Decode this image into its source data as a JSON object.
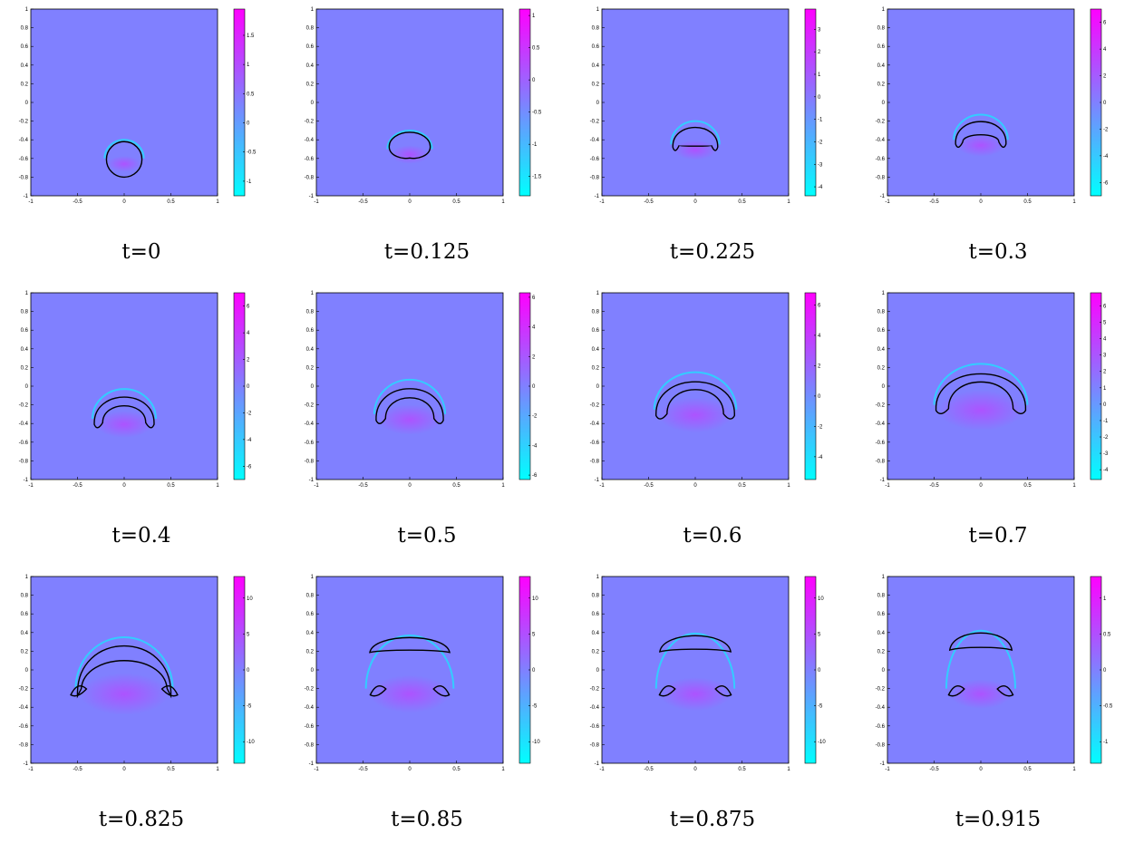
{
  "colors": {
    "background_field": "#8080ff",
    "colormap_low": "#00ffff",
    "colormap_mid": "#8080ff",
    "colormap_high": "#ff00ff",
    "interface": "#000000"
  },
  "chart_data": [
    {
      "type": "heatmap",
      "title": "t=0",
      "xlim": [
        -1,
        1
      ],
      "ylim": [
        -1,
        1
      ],
      "xticks": [
        "-1",
        "-0.5",
        "0",
        "0.5",
        "1"
      ],
      "yticks": [
        "1",
        "0.8",
        "0.6",
        "0.4",
        "0.2",
        "0",
        "-0.2",
        "-0.4",
        "-0.6",
        "-0.8",
        "-1"
      ],
      "colorbar_ticks": [
        "1.5",
        "1",
        "0.5",
        "0",
        "-0.5",
        "-1"
      ],
      "colorbar_range": [
        -1.25,
        1.95
      ],
      "interface": {
        "stage": "circle",
        "center_y": -0.6,
        "width": 0.19,
        "top": -0.42,
        "cap": -0.42,
        "tail": 0.0,
        "lobe": 0.0
      }
    },
    {
      "type": "heatmap",
      "title": "t=0.125",
      "xlim": [
        -1,
        1
      ],
      "ylim": [
        -1,
        1
      ],
      "xticks": [
        "-1",
        "-0.5",
        "0",
        "0.5",
        "1"
      ],
      "yticks": [
        "1",
        "0.8",
        "0.6",
        "0.4",
        "0.2",
        "0",
        "-0.2",
        "-0.4",
        "-0.6",
        "-0.8",
        "-1"
      ],
      "colorbar_ticks": [
        "1",
        "0.5",
        "0",
        "-0.5",
        "-1",
        "-1.5"
      ],
      "colorbar_range": [
        -1.8,
        1.1
      ],
      "interface": {
        "stage": "dimple",
        "center_y": -0.5,
        "width": 0.22,
        "top": -0.32,
        "cap": -0.32,
        "tail": 0.0,
        "lobe": 0.0
      }
    },
    {
      "type": "heatmap",
      "title": "t=0.225",
      "xlim": [
        -1,
        1
      ],
      "ylim": [
        -1,
        1
      ],
      "xticks": [
        "-1",
        "-0.5",
        "0",
        "0.5",
        "1"
      ],
      "yticks": [
        "1",
        "0.8",
        "0.6",
        "0.4",
        "0.2",
        "0",
        "-0.2",
        "-0.4",
        "-0.6",
        "-0.8",
        "-1"
      ],
      "colorbar_ticks": [
        "3",
        "2",
        "1",
        "0",
        "-1",
        "-2",
        "-3",
        "-4"
      ],
      "colorbar_range": [
        -4.4,
        3.9
      ],
      "interface": {
        "stage": "cap",
        "center_y": -0.45,
        "width": 0.24,
        "top": -0.22,
        "cap": -0.47,
        "tail": 0.1,
        "lobe": 0.0
      }
    },
    {
      "type": "heatmap",
      "title": "t=0.3",
      "xlim": [
        -1,
        1
      ],
      "ylim": [
        -1,
        1
      ],
      "xticks": [
        "-1",
        "-0.5",
        "0",
        "0.5",
        "1"
      ],
      "yticks": [
        "1",
        "0.8",
        "0.6",
        "0.4",
        "0.2",
        "0",
        "-0.2",
        "-0.4",
        "-0.6",
        "-0.8",
        "-1"
      ],
      "colorbar_ticks": [
        "6",
        "4",
        "2",
        "0",
        "-2",
        "-4",
        "-6"
      ],
      "colorbar_range": [
        -7,
        7
      ],
      "interface": {
        "stage": "cap",
        "center_y": -0.4,
        "width": 0.27,
        "top": -0.15,
        "cap": -0.32,
        "tail": 0.15,
        "lobe": 0.0
      }
    },
    {
      "type": "heatmap",
      "title": "t=0.4",
      "xlim": [
        -1,
        1
      ],
      "ylim": [
        -1,
        1
      ],
      "xticks": [
        "-1",
        "-0.5",
        "0",
        "0.5",
        "1"
      ],
      "yticks": [
        "1",
        "0.8",
        "0.6",
        "0.4",
        "0.2",
        "0",
        "-0.2",
        "-0.4",
        "-0.6",
        "-0.8",
        "-1"
      ],
      "colorbar_ticks": [
        "6",
        "4",
        "2",
        "0",
        "-2",
        "-4",
        "-6"
      ],
      "colorbar_range": [
        -7,
        7
      ],
      "interface": {
        "stage": "cap",
        "center_y": -0.35,
        "width": 0.32,
        "top": -0.05,
        "cap": -0.15,
        "tail": 0.2,
        "lobe": 0.0
      }
    },
    {
      "type": "heatmap",
      "title": "t=0.5",
      "xlim": [
        -1,
        1
      ],
      "ylim": [
        -1,
        1
      ],
      "xticks": [
        "-1",
        "-0.5",
        "0",
        "0.5",
        "1"
      ],
      "yticks": [
        "1",
        "0.8",
        "0.6",
        "0.4",
        "0.2",
        "0",
        "-0.2",
        "-0.4",
        "-0.6",
        "-0.8",
        "-1"
      ],
      "colorbar_ticks": [
        "6",
        "4",
        "2",
        "0",
        "-2",
        "-4",
        "-6"
      ],
      "colorbar_range": [
        -6.3,
        6.3
      ],
      "interface": {
        "stage": "cap",
        "center_y": -0.3,
        "width": 0.36,
        "top": 0.05,
        "cap": -0.05,
        "tail": 0.22,
        "lobe": 0.0
      }
    },
    {
      "type": "heatmap",
      "title": "t=0.6",
      "xlim": [
        -1,
        1
      ],
      "ylim": [
        -1,
        1
      ],
      "xticks": [
        "-1",
        "-0.5",
        "0",
        "0.5",
        "1"
      ],
      "yticks": [
        "1",
        "0.8",
        "0.6",
        "0.4",
        "0.2",
        "0",
        "-0.2",
        "-0.4",
        "-0.6",
        "-0.8",
        "-1"
      ],
      "colorbar_ticks": [
        "6",
        "4",
        "2",
        "0",
        "-2",
        "-4"
      ],
      "colorbar_range": [
        -5.5,
        6.8
      ],
      "interface": {
        "stage": "cap",
        "center_y": -0.25,
        "width": 0.42,
        "top": 0.13,
        "cap": 0.05,
        "tail": 0.22,
        "lobe": 0.0
      }
    },
    {
      "type": "heatmap",
      "title": "t=0.7",
      "xlim": [
        -1,
        1
      ],
      "ylim": [
        -1,
        1
      ],
      "xticks": [
        "-1",
        "-0.5",
        "0",
        "0.5",
        "1"
      ],
      "yticks": [
        "1",
        "0.8",
        "0.6",
        "0.4",
        "0.2",
        "0",
        "-0.2",
        "-0.4",
        "-0.6",
        "-0.8",
        "-1"
      ],
      "colorbar_ticks": [
        "6",
        "5",
        "4",
        "3",
        "2",
        "1",
        "0",
        "-1",
        "-2",
        "-3",
        "-4"
      ],
      "colorbar_range": [
        -4.6,
        6.8
      ],
      "interface": {
        "stage": "cap",
        "center_y": -0.2,
        "width": 0.48,
        "top": 0.22,
        "cap": 0.14,
        "tail": 0.2,
        "lobe": 0.0
      }
    },
    {
      "type": "heatmap",
      "title": "t=0.825",
      "xlim": [
        -1,
        1
      ],
      "ylim": [
        -1,
        1
      ],
      "xticks": [
        "-1",
        "-0.5",
        "0",
        "0.5",
        "1"
      ],
      "yticks": [
        "1",
        "0.8",
        "0.6",
        "0.4",
        "0.2",
        "0",
        "-0.2",
        "-0.4",
        "-0.6",
        "-0.8",
        "-1"
      ],
      "colorbar_ticks": [
        "10",
        "5",
        "0",
        "-5",
        "-10"
      ],
      "colorbar_range": [
        -13,
        13
      ],
      "interface": {
        "stage": "pinch",
        "center_y": -0.2,
        "width": 0.5,
        "top": 0.33,
        "cap": 0.2,
        "tail": 0.2,
        "lobe": 0.08
      }
    },
    {
      "type": "heatmap",
      "title": "t=0.85",
      "xlim": [
        -1,
        1
      ],
      "ylim": [
        -1,
        1
      ],
      "xticks": [
        "-1",
        "-0.5",
        "0",
        "0.5",
        "1"
      ],
      "yticks": [
        "1",
        "0.8",
        "0.6",
        "0.4",
        "0.2",
        "0",
        "-0.2",
        "-0.4",
        "-0.6",
        "-0.8",
        "-1"
      ],
      "colorbar_ticks": [
        "10",
        "5",
        "0",
        "-5",
        "-10"
      ],
      "colorbar_range": [
        -13,
        13
      ],
      "interface": {
        "stage": "split",
        "center_y": -0.2,
        "width": 0.45,
        "top": 0.35,
        "cap": 0.22,
        "tail": 0.2,
        "lobe": 0.08
      }
    },
    {
      "type": "heatmap",
      "title": "t=0.875",
      "xlim": [
        -1,
        1
      ],
      "ylim": [
        -1,
        1
      ],
      "xticks": [
        "-1",
        "-0.5",
        "0",
        "0.5",
        "1"
      ],
      "yticks": [
        "1",
        "0.8",
        "0.6",
        "0.4",
        "0.2",
        "0",
        "-0.2",
        "-0.4",
        "-0.6",
        "-0.8",
        "-1"
      ],
      "colorbar_ticks": [
        "10",
        "5",
        "0",
        "-5",
        "-10"
      ],
      "colorbar_range": [
        -13,
        13
      ],
      "interface": {
        "stage": "split",
        "center_y": -0.2,
        "width": 0.4,
        "top": 0.37,
        "cap": 0.23,
        "tail": 0.2,
        "lobe": 0.08
      }
    },
    {
      "type": "heatmap",
      "title": "t=0.915",
      "xlim": [
        -1,
        1
      ],
      "ylim": [
        -1,
        1
      ],
      "xticks": [
        "-1",
        "-0.5",
        "0",
        "0.5",
        "1"
      ],
      "yticks": [
        "1",
        "0.8",
        "0.6",
        "0.4",
        "0.2",
        "0",
        "-0.2",
        "-0.4",
        "-0.6",
        "-0.8",
        "-1"
      ],
      "colorbar_ticks": [
        "1",
        "0.5",
        "0",
        "-0.5",
        "-1"
      ],
      "colorbar_range": [
        -1.3,
        1.3
      ],
      "interface": {
        "stage": "split",
        "center_y": -0.2,
        "width": 0.35,
        "top": 0.4,
        "cap": 0.25,
        "tail": 0.2,
        "lobe": 0.08
      }
    }
  ]
}
